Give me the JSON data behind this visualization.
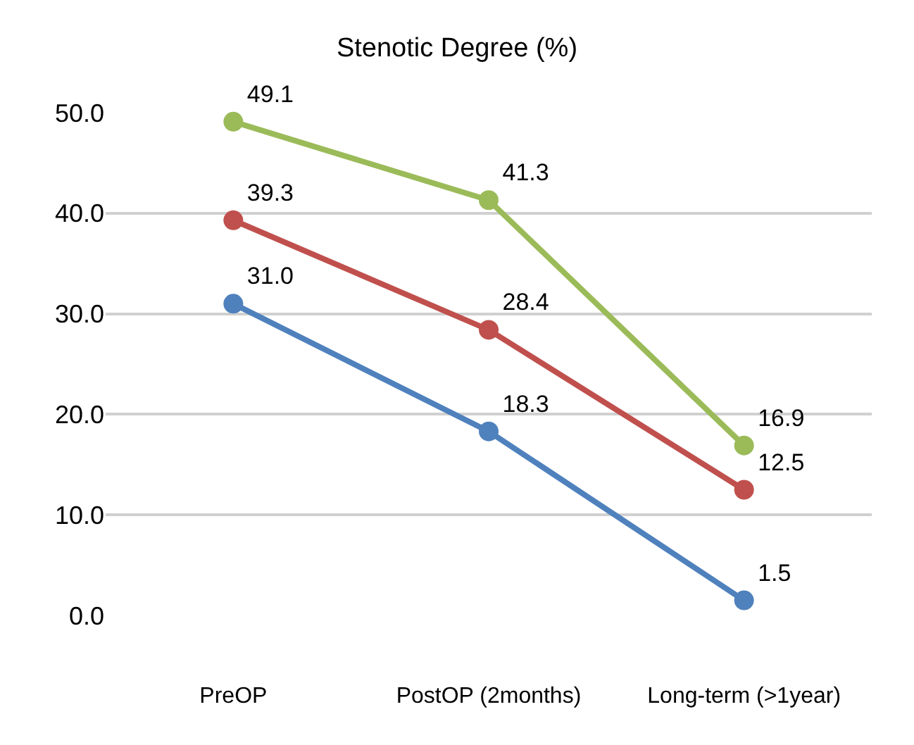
{
  "chart_data": {
    "type": "line",
    "title": "Stenotic Degree (%)",
    "categories": [
      "PreOP",
      "PostOP (2months)",
      "Long-term (>1year)"
    ],
    "series": [
      {
        "color": "#9bbb59",
        "values": [
          49.1,
          41.3,
          16.9
        ],
        "value_labels": [
          "49.1",
          "41.3",
          "16.9"
        ]
      },
      {
        "color": "#c0504d",
        "values": [
          39.3,
          28.4,
          12.5
        ],
        "value_labels": [
          "39.3",
          "28.4",
          "12.5"
        ]
      },
      {
        "color": "#4f81bd",
        "values": [
          31.0,
          18.3,
          1.5
        ],
        "value_labels": [
          "31.0",
          "18.3",
          "1.5"
        ]
      }
    ],
    "ylim": [
      0,
      50
    ],
    "yticks": [
      {
        "value": 0,
        "label": "0.0"
      },
      {
        "value": 10,
        "label": "10.0"
      },
      {
        "value": 20,
        "label": "20.0"
      },
      {
        "value": 30,
        "label": "30.0"
      },
      {
        "value": 40,
        "label": "40.0"
      },
      {
        "value": 50,
        "label": "50.0"
      }
    ],
    "grid": "y",
    "marker": "circle",
    "line_style": "solid"
  }
}
